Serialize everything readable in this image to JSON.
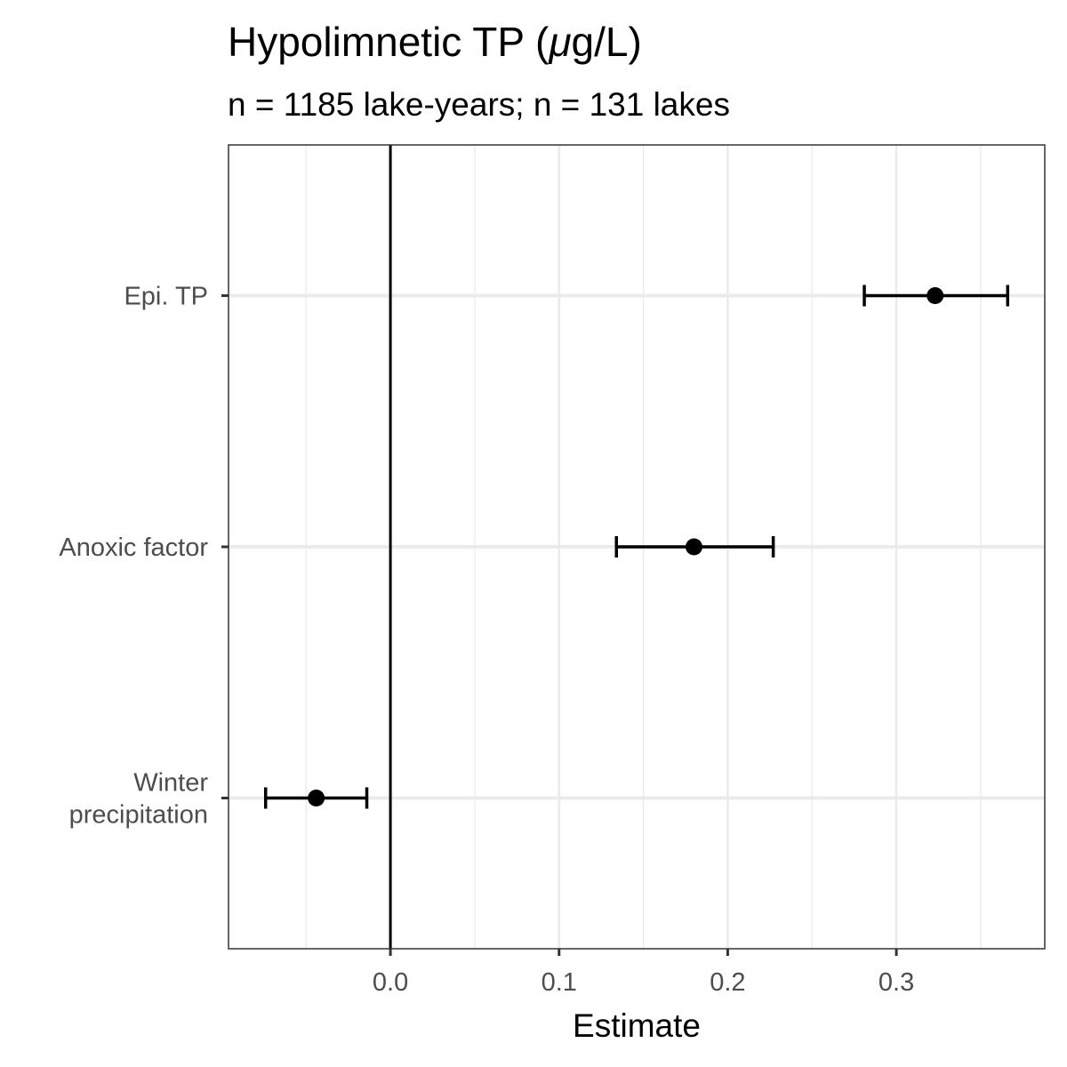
{
  "chart_data": {
    "type": "forest",
    "title_main": "Hypolimnetic TP (",
    "title_mu": "μ",
    "title_end": "g/L)",
    "subtitle": "n = 1185 lake-years; n = 131 lakes",
    "xlabel": "Estimate",
    "xlim": [
      -0.096,
      0.388
    ],
    "x_ticks": [
      0.0,
      0.1,
      0.2,
      0.3
    ],
    "x_tick_labels": [
      "0.0",
      "0.1",
      "0.2",
      "0.3"
    ],
    "x_minor_ticks": [
      -0.05,
      0.05,
      0.15,
      0.25,
      0.35
    ],
    "reference_line": 0,
    "grid": true,
    "terms": [
      {
        "label_lines": [
          "Epi. TP"
        ],
        "estimate": 0.323,
        "lower": 0.281,
        "upper": 0.366
      },
      {
        "label_lines": [
          "Anoxic factor"
        ],
        "estimate": 0.18,
        "lower": 0.134,
        "upper": 0.227
      },
      {
        "label_lines": [
          "Winter",
          "precipitation"
        ],
        "estimate": -0.044,
        "lower": -0.074,
        "upper": -0.014
      }
    ],
    "colors": {
      "point": "#000000",
      "grid": "#ebebeb",
      "panel_border": "#333333",
      "tick_text": "#4d4d4d"
    }
  }
}
